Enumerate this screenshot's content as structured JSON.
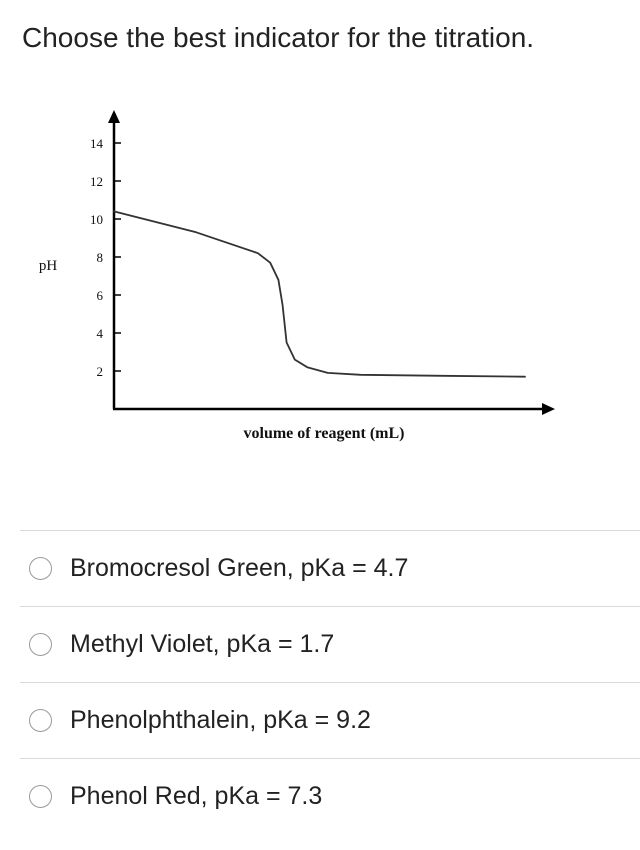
{
  "question": {
    "text": "Choose the best indicator for the titration."
  },
  "chart_data": {
    "type": "line",
    "title": "",
    "xlabel": "volume of reagent (mL)",
    "ylabel": "pH",
    "yticks": [
      2,
      4,
      6,
      8,
      10,
      12,
      14
    ],
    "ylim": [
      0,
      15
    ],
    "xlim": [
      0,
      100
    ],
    "grid": false,
    "series": [
      {
        "x": [
          0,
          20,
          35,
          38,
          40,
          41,
          42,
          44,
          47,
          52,
          60,
          80,
          100
        ],
        "y": [
          10.4,
          9.3,
          8.2,
          7.7,
          6.8,
          5.5,
          3.5,
          2.6,
          2.2,
          1.9,
          1.8,
          1.75,
          1.7
        ]
      }
    ]
  },
  "options": [
    {
      "label": "Bromocresol Green, pKa = 4.7"
    },
    {
      "label": "Methyl Violet, pKa = 1.7"
    },
    {
      "label": "Phenolphthalein, pKa = 9.2"
    },
    {
      "label": "Phenol Red, pKa = 7.3"
    }
  ]
}
